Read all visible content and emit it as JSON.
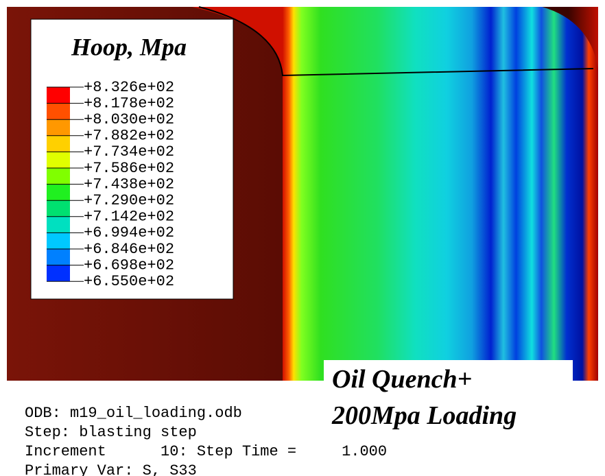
{
  "legend": {
    "title": "Hoop, Mpa",
    "labels": [
      "+8.326e+02",
      "+8.178e+02",
      "+8.030e+02",
      "+7.882e+02",
      "+7.734e+02",
      "+7.586e+02",
      "+7.438e+02",
      "+7.290e+02",
      "+7.142e+02",
      "+6.994e+02",
      "+6.846e+02",
      "+6.698e+02",
      "+6.550e+02"
    ]
  },
  "annotation": {
    "lines": [
      "Oil Quench+",
      "200Mpa Loading"
    ]
  },
  "info": {
    "lines": [
      "ODB: m19_oil_loading.odb",
      "Step: blasting step",
      "Increment      10: Step Time =     1.000",
      "Primary Var: S, S33"
    ]
  }
}
